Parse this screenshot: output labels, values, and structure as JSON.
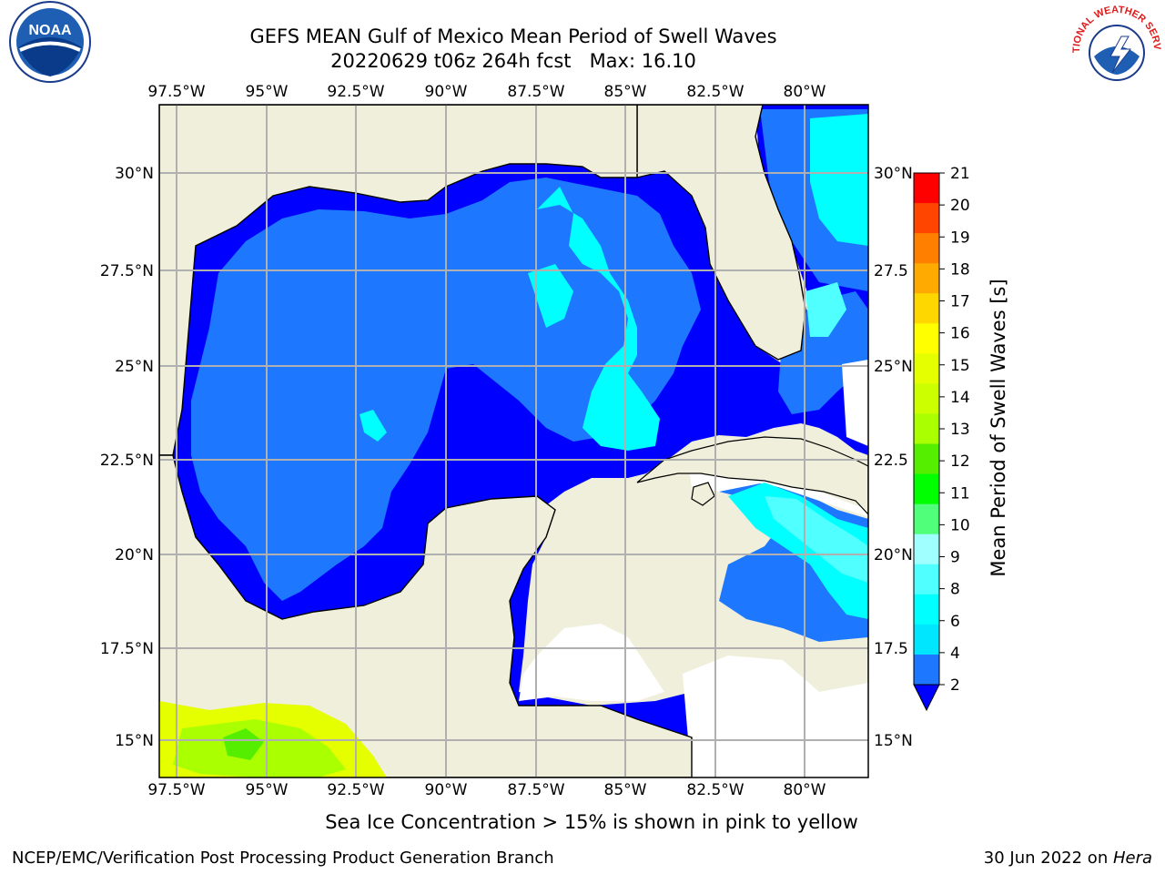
{
  "header": {
    "title_line1": "GEFS MEAN Gulf of Mexico Mean Period of Swell Waves",
    "title_line2": "20220629 t06z 264h fcst   Max: 16.10"
  },
  "map": {
    "lon_ticks_top": [
      "97.5°W",
      "95°W",
      "92.5°W",
      "90°W",
      "87.5°W",
      "85°W",
      "82.5°W",
      "80°W"
    ],
    "lon_ticks_bottom": [
      "97.5°W",
      "95°W",
      "92.5°W",
      "90°W",
      "87.5°W",
      "85°W",
      "82.5°W",
      "80°W"
    ],
    "lat_ticks_left": [
      "30°N",
      "27.5°N",
      "25°N",
      "22.5°N",
      "20°N",
      "17.5°N",
      "15°N"
    ],
    "lat_ticks_right": [
      "30°N",
      "27.5",
      "25°N",
      "22.5",
      "20°N",
      "17.5",
      "15°N"
    ],
    "colors": {
      "land": "#efefdc",
      "deep_blue": "#0000ff",
      "mid_blue": "#1e78ff",
      "cyan": "#00ffff",
      "light_cyan": "#50ffff",
      "ice_yellow": "#e6ff00",
      "ice_green": "#aaff00",
      "grid": "#b0b0b0"
    }
  },
  "colorbar": {
    "label": "Mean Period of Swell Waves [s]",
    "ticks": [
      "2",
      "4",
      "6",
      "8",
      "9",
      "10",
      "11",
      "12",
      "13",
      "14",
      "15",
      "16",
      "17",
      "18",
      "19",
      "20",
      "21"
    ],
    "segment_colors": [
      "#1e78ff",
      "#00e6ff",
      "#00ffff",
      "#50ffff",
      "#a0ffff",
      "#50ff7a",
      "#00ff00",
      "#55ee00",
      "#aaff00",
      "#ccff00",
      "#e6ff00",
      "#ffff00",
      "#ffd700",
      "#ffaa00",
      "#ff7f00",
      "#ff4500",
      "#ff0000"
    ],
    "extend_color": "#0000ff"
  },
  "caption": "Sea Ice Concentration > 15% is shown in pink to yellow",
  "footer": {
    "left": "NCEP/EMC/Verification Post Processing Product Generation Branch",
    "date": "30 Jun 2022 on ",
    "machine": "Hera"
  },
  "logos": {
    "noaa_text": "NOAA",
    "nws_text": "NATIONAL WEATHER SERVICE"
  }
}
